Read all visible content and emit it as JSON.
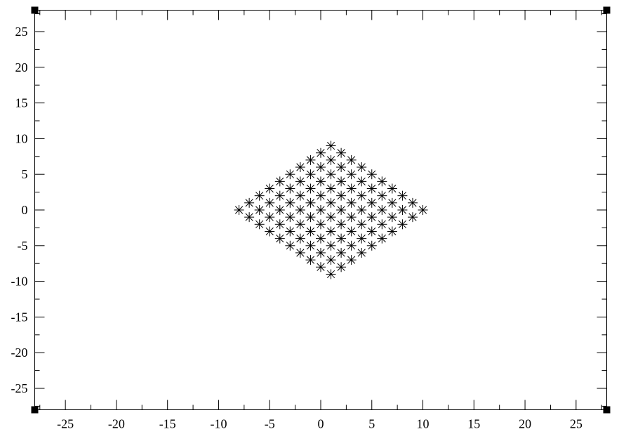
{
  "chart_data": {
    "type": "scatter",
    "title": "",
    "xlabel": "",
    "ylabel": "",
    "xlim": [
      -28,
      28
    ],
    "ylim": [
      -28,
      28
    ],
    "x_major_ticks": [
      -25,
      -20,
      -15,
      -10,
      -5,
      0,
      5,
      10,
      15,
      20,
      25
    ],
    "y_major_ticks": [
      -25,
      -20,
      -15,
      -10,
      -5,
      0,
      5,
      10,
      15,
      20,
      25
    ],
    "x_tick_labels": [
      "-25",
      "-20",
      "-15",
      "-10",
      "-5",
      "0",
      "5",
      "10",
      "15",
      "20",
      "25"
    ],
    "y_tick_labels": [
      "-25",
      "-20",
      "-15",
      "-10",
      "-5",
      "0",
      "5",
      "10",
      "15",
      "20",
      "25"
    ],
    "minor_tick_step": 2.5,
    "grid": false,
    "marker": "asterisk",
    "series": [
      {
        "description": "lattice points x=a+b, y=a-b for integers a,b in [-4,5]",
        "points": "computed"
      }
    ]
  }
}
